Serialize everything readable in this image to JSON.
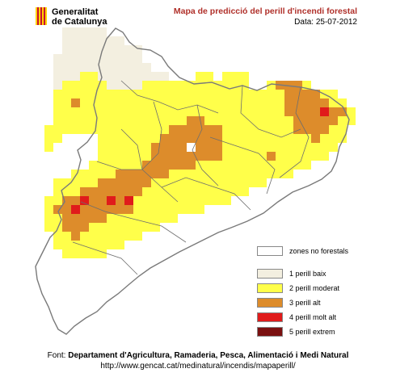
{
  "header": {
    "logo_line1": "Generalitat",
    "logo_line2": "de Catalunya",
    "map_title": "Mapa de predicció del perill d'incendi forestal",
    "date": "Data: 25-07-2012"
  },
  "colors": {
    "land_outline": "#7a7a7a",
    "zone0": "#ffffff",
    "zone1": "#f3efe0",
    "zone2": "#ffff4a",
    "zone3": "#dd8c2b",
    "zone4": "#e01b1b",
    "zone5": "#7a1010",
    "title": "#b0302a"
  },
  "legend": [
    {
      "label": "zones no forestals",
      "color": "#ffffff"
    },
    {
      "label": "1  perill baix",
      "color": "#f3efe0"
    },
    {
      "label": "2  perill moderat",
      "color": "#ffff4a"
    },
    {
      "label": "3  perill alt",
      "color": "#dd8c2b"
    },
    {
      "label": "4  perill molt alt",
      "color": "#e01b1b"
    },
    {
      "label": "5  perill extrem",
      "color": "#7a1010"
    }
  ],
  "footer": {
    "source_prefix": "Font:",
    "source_name": "Departament d'Agricultura, Ramaderia, Pesca, Alimentació i Medi Natural",
    "url": "http://www.gencat.cat/medinatural/incendis/mapaperill/"
  }
}
